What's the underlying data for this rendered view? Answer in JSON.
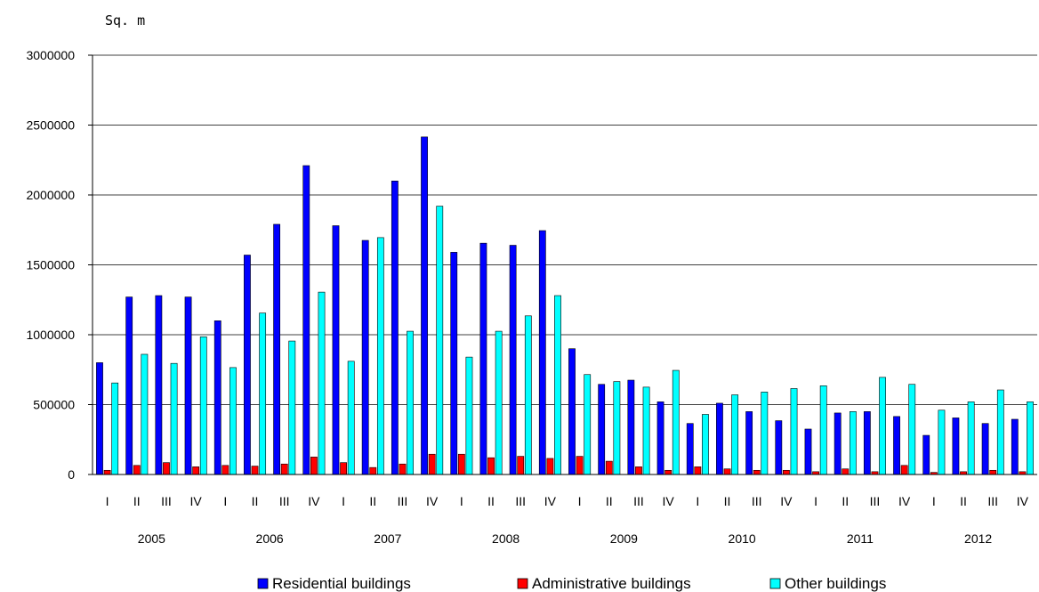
{
  "chart_data": {
    "type": "bar",
    "unit_label": "Sq. m",
    "ylim": [
      0,
      3000000
    ],
    "y_ticks": [
      0,
      500000,
      1000000,
      1500000,
      2000000,
      2500000,
      3000000
    ],
    "y_tick_labels": [
      "0",
      "500000",
      "1000000",
      "1500000",
      "2000000",
      "2500000",
      "3000000"
    ],
    "grid": true,
    "legend_position": "bottom",
    "years": [
      "2005",
      "2006",
      "2007",
      "2008",
      "2009",
      "2010",
      "2011",
      "2012"
    ],
    "quarters": [
      "I",
      "II",
      "III",
      "IV"
    ],
    "categories": [
      "2005 I",
      "2005 II",
      "2005 III",
      "2005 IV",
      "2006 I",
      "2006 II",
      "2006 III",
      "2006 IV",
      "2007 I",
      "2007 II",
      "2007 III",
      "2007 IV",
      "2008 I",
      "2008 II",
      "2008 III",
      "2008 IV",
      "2009 I",
      "2009 II",
      "2009 III",
      "2009 IV",
      "2010 I",
      "2010 II",
      "2010 III",
      "2010 IV",
      "2011 I",
      "2011 II",
      "2011 III",
      "2011 IV",
      "2012 I",
      "2012 II",
      "2012 III",
      "2012 IV"
    ],
    "series": [
      {
        "name": "Residential buildings",
        "color": "#0000ff",
        "values": [
          800000,
          1270000,
          1280000,
          1270000,
          1100000,
          1570000,
          1790000,
          2210000,
          1780000,
          1675000,
          2100000,
          2415000,
          1590000,
          1655000,
          1640000,
          1745000,
          900000,
          645000,
          675000,
          520000,
          365000,
          510000,
          450000,
          385000,
          325000,
          440000,
          450000,
          415000,
          280000,
          405000,
          365000,
          395000
        ]
      },
      {
        "name": "Administrative buildings",
        "color": "#ff0000",
        "values": [
          30000,
          65000,
          85000,
          55000,
          65000,
          60000,
          75000,
          125000,
          85000,
          50000,
          75000,
          145000,
          145000,
          120000,
          130000,
          115000,
          130000,
          95000,
          55000,
          30000,
          55000,
          40000,
          30000,
          30000,
          20000,
          40000,
          20000,
          65000,
          15000,
          20000,
          30000,
          20000
        ]
      },
      {
        "name": "Other buildings",
        "color": "#00ffff",
        "values": [
          655000,
          860000,
          795000,
          985000,
          765000,
          1155000,
          955000,
          1305000,
          810000,
          1695000,
          1025000,
          1920000,
          840000,
          1025000,
          1135000,
          1280000,
          715000,
          665000,
          625000,
          745000,
          430000,
          570000,
          590000,
          615000,
          635000,
          450000,
          695000,
          645000,
          460000,
          520000,
          605000,
          520000
        ]
      }
    ]
  }
}
